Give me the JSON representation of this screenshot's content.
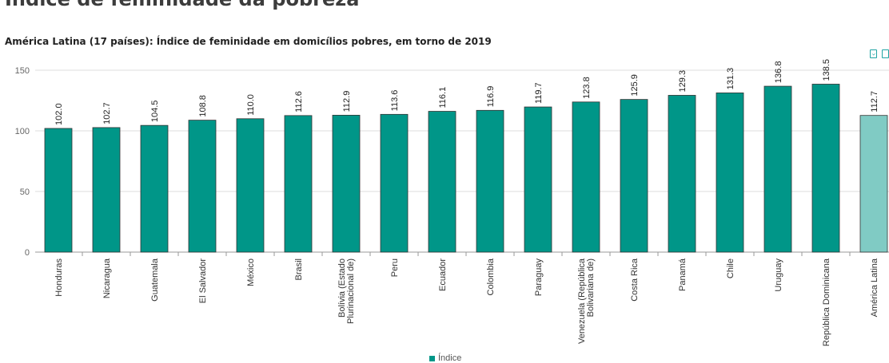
{
  "page_heading": "Índice de feminidade da pobreza",
  "chart_title": "América Latina (17 países): Índice de feminidade em domicílios pobres, em torno de 2019",
  "toolbar": {
    "icons": [
      "download-icon",
      "share-icon"
    ]
  },
  "colors": {
    "bar": "#009688",
    "highlight": "#80cbc4",
    "grid": "#dddddd",
    "axis": "#999999"
  },
  "chart_data": {
    "type": "bar",
    "categories": [
      "Honduras",
      "Nicaragua",
      "Guatemala",
      "El Salvador",
      "México",
      "Brasil",
      "Bolívia (Estado\nPlurinacional de)",
      "Peru",
      "Ecuador",
      "Colombia",
      "Paraguay",
      "Venezuela (República\nBolivariana de)",
      "Costa Rica",
      "Panamá",
      "Chile",
      "Uruguay",
      "República Dominicana",
      "América Latina"
    ],
    "series": [
      {
        "name": "Índice",
        "values": [
          102.0,
          102.7,
          104.5,
          108.8,
          110.0,
          112.6,
          112.9,
          113.6,
          116.1,
          116.9,
          119.7,
          123.8,
          125.9,
          129.3,
          131.3,
          136.8,
          138.5,
          112.7
        ],
        "labels": [
          "102.0",
          "102.7",
          "104.5",
          "108.8",
          "110.0",
          "112.6",
          "112.9",
          "113.6",
          "116.1",
          "116.9",
          "119.7",
          "123.8",
          "125.9",
          "129.3",
          "131.3",
          "136.8",
          "138.5",
          "112.7"
        ]
      }
    ],
    "highlight_category": "América Latina",
    "ylim": [
      0,
      150
    ],
    "yticks": [
      "0",
      "50",
      "100",
      "150"
    ],
    "grid": true,
    "legend_position": "bottom-center"
  }
}
